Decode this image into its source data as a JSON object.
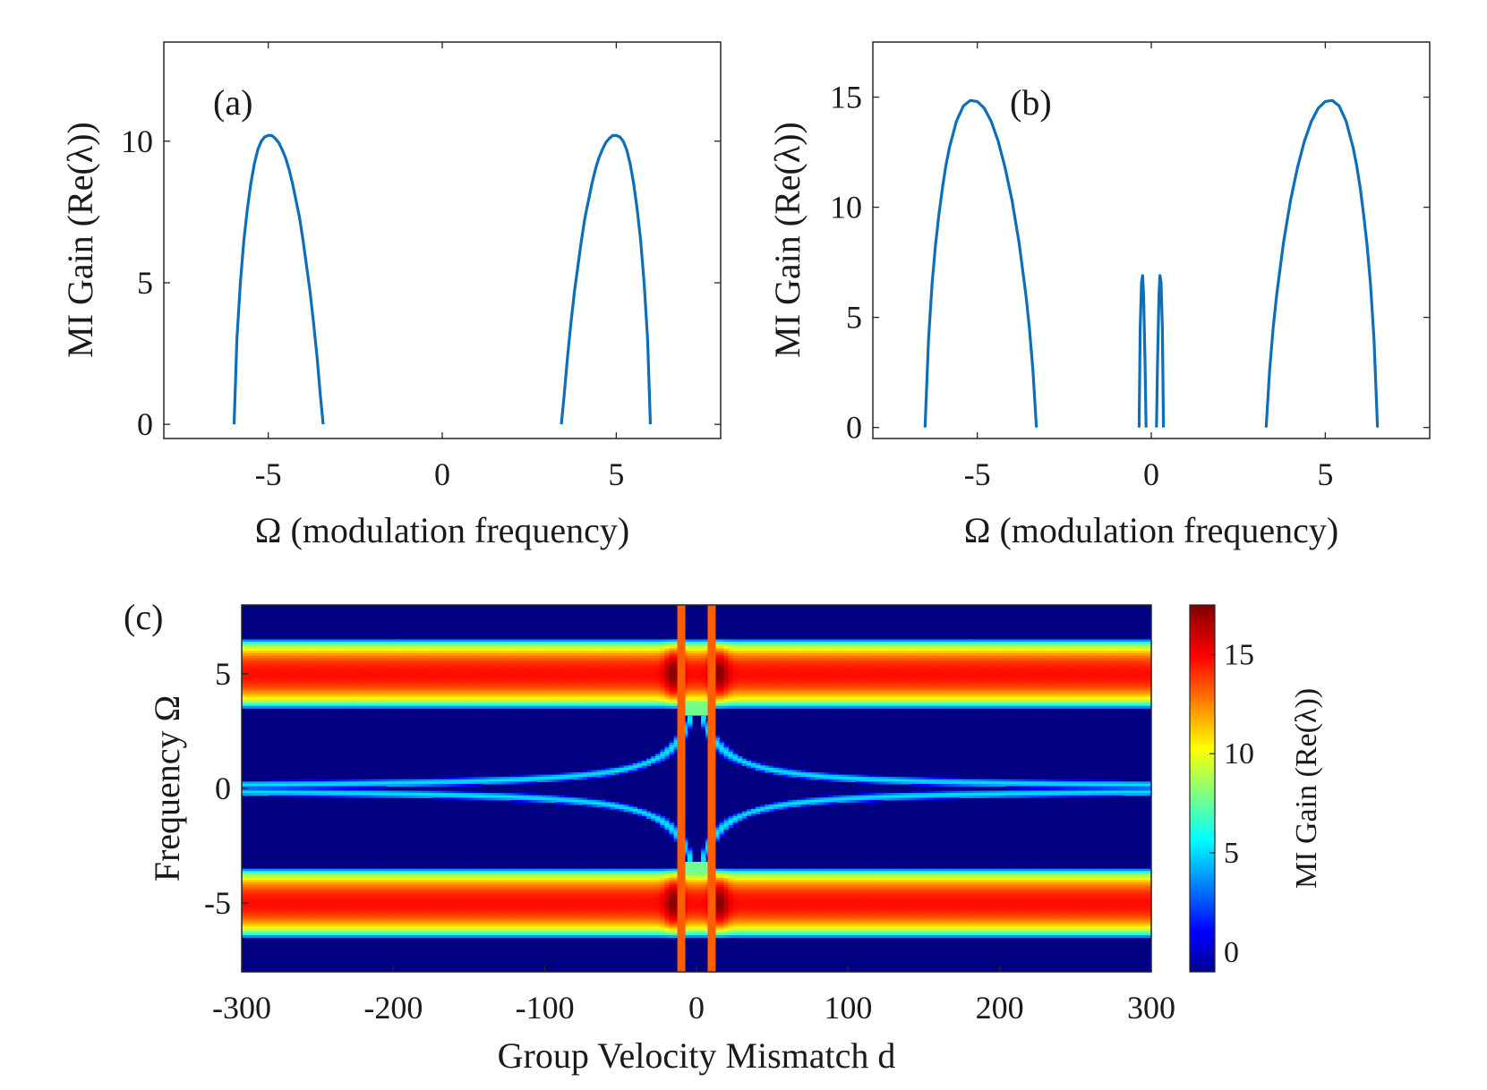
{
  "chart_data": [
    {
      "panel": "(a)",
      "type": "line",
      "xlabel": "Ω (modulation frequency)",
      "ylabel": "MI Gain (Re(λ))",
      "xlim": [
        -8,
        8
      ],
      "ylim": [
        -0.5,
        13.5
      ],
      "xticks": [
        -5,
        0,
        5
      ],
      "yticks": [
        0,
        5,
        10
      ],
      "line_color": "#0e6eb8",
      "series": [
        {
          "x": [
            -5.98,
            -5.9,
            -5.8,
            -5.7,
            -5.6,
            -5.5,
            -5.4,
            -5.3,
            -5.2,
            -5.1,
            -5.0,
            -4.9,
            -4.8,
            -4.7,
            -4.6,
            -4.5,
            -4.4,
            -4.3,
            -4.2,
            -4.1,
            -4.0,
            -3.9,
            -3.8,
            -3.7,
            -3.6,
            -3.5,
            -3.42
          ],
          "y": [
            0.0,
            3.0,
            5.0,
            6.5,
            7.6,
            8.5,
            9.2,
            9.7,
            10.0,
            10.15,
            10.2,
            10.2,
            10.1,
            9.95,
            9.7,
            9.4,
            9.0,
            8.5,
            7.9,
            7.3,
            6.5,
            5.6,
            4.7,
            3.6,
            2.4,
            1.0,
            0.0
          ]
        },
        {
          "x": [
            3.42,
            3.5,
            3.6,
            3.7,
            3.8,
            3.9,
            4.0,
            4.1,
            4.2,
            4.3,
            4.4,
            4.5,
            4.6,
            4.7,
            4.8,
            4.9,
            5.0,
            5.1,
            5.2,
            5.3,
            5.4,
            5.5,
            5.6,
            5.7,
            5.8,
            5.9,
            5.98
          ],
          "y": [
            0.0,
            1.0,
            2.4,
            3.6,
            4.7,
            5.6,
            6.5,
            7.3,
            7.9,
            8.5,
            9.0,
            9.4,
            9.7,
            9.95,
            10.1,
            10.2,
            10.2,
            10.15,
            10.0,
            9.7,
            9.2,
            8.5,
            7.6,
            6.5,
            5.0,
            3.0,
            0.0
          ]
        }
      ]
    },
    {
      "panel": "(b)",
      "type": "line",
      "xlabel": "Ω (modulation frequency)",
      "ylabel": "MI Gain (Re(λ))",
      "xlim": [
        -8,
        8
      ],
      "ylim": [
        -0.5,
        17.5
      ],
      "xticks": [
        -5,
        0,
        5
      ],
      "yticks": [
        0,
        5,
        10,
        15
      ],
      "line_color": "#0e6eb8",
      "series": [
        {
          "x": [
            -6.5,
            -6.4,
            -6.3,
            -6.2,
            -6.1,
            -6.0,
            -5.9,
            -5.8,
            -5.6,
            -5.4,
            -5.2,
            -5.0,
            -4.8,
            -4.6,
            -4.4,
            -4.2,
            -4.0,
            -3.8,
            -3.6,
            -3.5,
            -3.4,
            -3.3
          ],
          "y": [
            0.0,
            4.0,
            6.5,
            8.3,
            9.7,
            10.9,
            11.9,
            12.7,
            13.9,
            14.6,
            14.85,
            14.8,
            14.5,
            13.9,
            13.0,
            11.8,
            10.3,
            8.4,
            6.0,
            4.5,
            2.6,
            0.0
          ]
        },
        {
          "x": [
            -0.35,
            -0.32,
            -0.28,
            -0.25,
            -0.22,
            -0.18,
            -0.15
          ],
          "y": [
            0.0,
            4.5,
            6.6,
            6.9,
            6.0,
            3.0,
            0.0
          ]
        },
        {
          "x": [
            0.15,
            0.18,
            0.22,
            0.25,
            0.28,
            0.32,
            0.35
          ],
          "y": [
            0.0,
            3.0,
            6.0,
            6.9,
            6.6,
            4.5,
            0.0
          ]
        },
        {
          "x": [
            3.3,
            3.4,
            3.5,
            3.6,
            3.8,
            4.0,
            4.2,
            4.4,
            4.6,
            4.8,
            5.0,
            5.2,
            5.4,
            5.6,
            5.8,
            5.9,
            6.0,
            6.1,
            6.2,
            6.3,
            6.4,
            6.5
          ],
          "y": [
            0.0,
            2.6,
            4.5,
            6.0,
            8.4,
            10.3,
            11.8,
            13.0,
            13.9,
            14.5,
            14.8,
            14.85,
            14.6,
            13.9,
            12.7,
            11.9,
            10.9,
            9.7,
            8.3,
            6.5,
            4.0,
            0.0
          ]
        }
      ]
    },
    {
      "panel": "(c)",
      "type": "heatmap",
      "xlabel": "Group Velocity Mismatch d",
      "ylabel": "Frequency Ω",
      "xlim": [
        -300,
        300
      ],
      "ylim": [
        -8,
        8
      ],
      "xticks": [
        -300,
        -200,
        -100,
        0,
        100,
        200,
        300
      ],
      "yticks": [
        -5,
        0,
        5
      ],
      "colorbar": {
        "label": "MI Gain (Re(λ))",
        "range": [
          -1,
          17.5
        ],
        "ticks": [
          0,
          5,
          10,
          15
        ],
        "colormap": "jet"
      },
      "features": {
        "gain_band_outer_edge": 6.5,
        "gain_band_inner_edge": 3.5,
        "band_peak": 15.0,
        "central_lobe_peak": 5.5,
        "vertical_stripes_d": [
          -10,
          10
        ],
        "vertical_stripe_value": 13.5
      }
    }
  ]
}
